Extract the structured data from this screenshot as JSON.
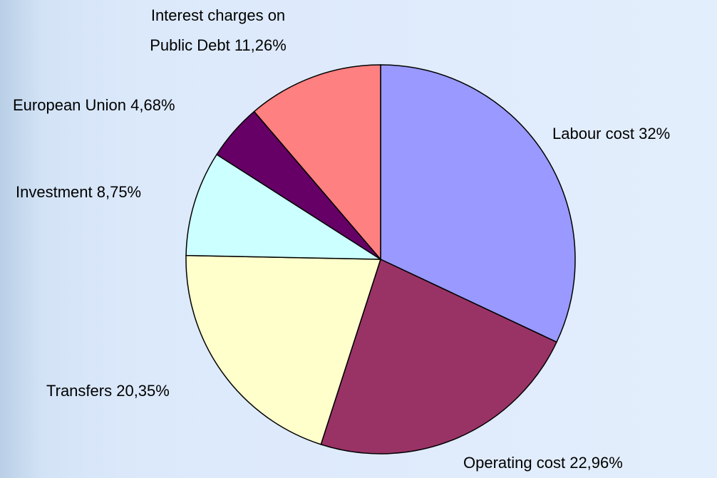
{
  "chart_data": {
    "type": "pie",
    "categories": [
      "Labour cost",
      "Operating cost",
      "Transfers",
      "Investment",
      "European Union",
      "Interest charges on Public Debt"
    ],
    "values": [
      32,
      22.96,
      20.35,
      8.75,
      4.68,
      11.26
    ],
    "value_labels": [
      "32%",
      "22,96%",
      "20,35%",
      "8,75%",
      "4,68%",
      "11,26%"
    ],
    "colors": [
      "#9999ff",
      "#993366",
      "#ffffcc",
      "#ccffff",
      "#660066",
      "#ff8080"
    ]
  }
}
